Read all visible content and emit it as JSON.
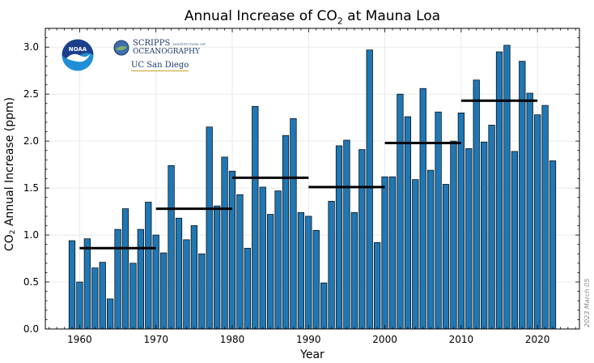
{
  "chart_data": {
    "type": "bar",
    "title_prefix": "Annual Increase of CO",
    "title_sub": "2",
    "title_suffix": " at Mauna Loa",
    "xlabel": "Year",
    "ylabel_prefix": "CO",
    "ylabel_sub": "2",
    "ylabel_suffix": " Annual Increase (ppm)",
    "xlim": [
      1955.5,
      2025.5
    ],
    "ylim": [
      0,
      3.2
    ],
    "xticks": [
      1960,
      1970,
      1980,
      1990,
      2000,
      2010,
      2020
    ],
    "yticks": [
      0.0,
      0.5,
      1.0,
      1.5,
      2.0,
      2.5,
      3.0
    ],
    "xtick_labels": [
      "1960",
      "1970",
      "1980",
      "1990",
      "2000",
      "2010",
      "2020"
    ],
    "ytick_labels": [
      "0.0",
      "0.5",
      "1.0",
      "1.5",
      "2.0",
      "2.5",
      "3.0"
    ],
    "grid": true,
    "bar_color": "#1f77b4",
    "bar_edge_color": "#000000",
    "x": [
      1959,
      1960,
      1961,
      1962,
      1963,
      1964,
      1965,
      1966,
      1967,
      1968,
      1969,
      1970,
      1971,
      1972,
      1973,
      1974,
      1975,
      1976,
      1977,
      1978,
      1979,
      1980,
      1981,
      1982,
      1983,
      1984,
      1985,
      1986,
      1987,
      1988,
      1989,
      1990,
      1991,
      1992,
      1993,
      1994,
      1995,
      1996,
      1997,
      1998,
      1999,
      2000,
      2001,
      2002,
      2003,
      2004,
      2005,
      2006,
      2007,
      2008,
      2009,
      2010,
      2011,
      2012,
      2013,
      2014,
      2015,
      2016,
      2017,
      2018,
      2019,
      2020,
      2021,
      2022
    ],
    "values": [
      0.94,
      0.5,
      0.96,
      0.65,
      0.71,
      0.32,
      1.06,
      1.28,
      0.7,
      1.06,
      1.35,
      1.0,
      0.81,
      1.74,
      1.18,
      0.95,
      1.1,
      0.8,
      2.15,
      1.31,
      1.83,
      1.68,
      1.43,
      0.86,
      2.37,
      1.51,
      1.22,
      1.47,
      2.06,
      2.24,
      1.24,
      1.2,
      1.05,
      0.49,
      1.36,
      1.95,
      2.01,
      1.24,
      1.91,
      2.97,
      0.92,
      1.62,
      1.62,
      2.5,
      2.26,
      1.59,
      2.56,
      1.69,
      2.31,
      1.54,
      2.0,
      2.3,
      1.92,
      2.65,
      1.99,
      2.17,
      2.95,
      3.02,
      1.89,
      2.85,
      2.51,
      2.28,
      2.38,
      1.79
    ],
    "decadal_averages": [
      {
        "start": 1960,
        "end": 1970,
        "value": 0.86
      },
      {
        "start": 1970,
        "end": 1980,
        "value": 1.28
      },
      {
        "start": 1980,
        "end": 1990,
        "value": 1.61
      },
      {
        "start": 1990,
        "end": 2000,
        "value": 1.51
      },
      {
        "start": 2000,
        "end": 2010,
        "value": 1.98
      },
      {
        "start": 2010,
        "end": 2020,
        "value": 2.43
      }
    ],
    "date_stamp": "2023 March 05"
  },
  "logos": {
    "noaa_text": "NOAA",
    "scripps_line1": "SCRIPPS",
    "scripps_line1_small": "INSTITUTION OF",
    "scripps_line2": "OCEANOGRAPHY",
    "ucsd": "UC San Diego",
    "noaa_dark": "#1b3f8b",
    "noaa_light": "#1f8ed6"
  }
}
